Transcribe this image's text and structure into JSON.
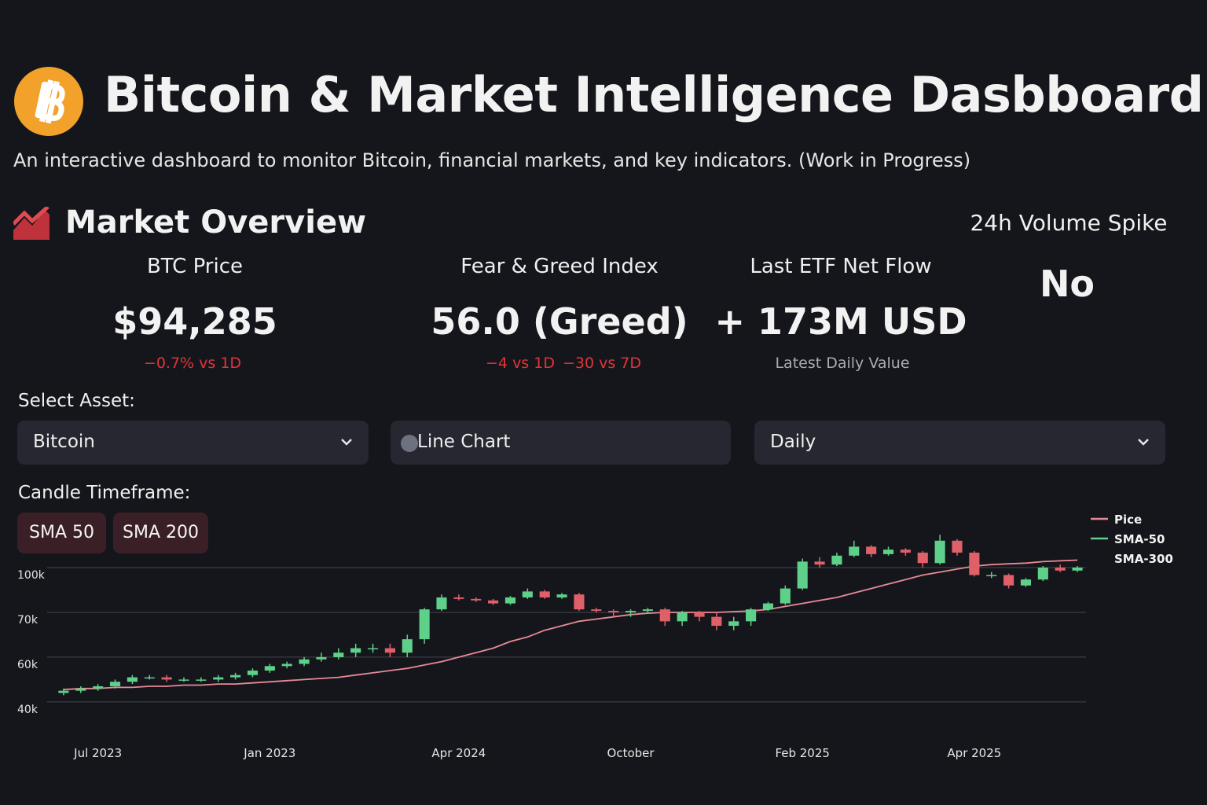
{
  "header": {
    "title": "Bitcoin & Market Intelligence Dasbboard",
    "subtitle": "An interactive dashboard to monitor Bitcoin, financial markets, and key indicators. (Work in Progress)"
  },
  "overview": {
    "title": "Market Overview",
    "metrics": [
      {
        "label": "BTC Price",
        "value": "$94,285",
        "deltas": [
          "−0.7% vs 1D"
        ]
      },
      {
        "label": "Fear & Greed Index",
        "value": "56.0 (Greed)",
        "deltas": [
          "−4 vs 1D",
          "−30 vs 7D"
        ]
      },
      {
        "label": "Last ETF Net Flow",
        "value": "+ 173M USD",
        "note": "Latest Daily Value"
      }
    ],
    "volume_spike": {
      "label": "24h Volume Spike",
      "value": "No"
    }
  },
  "controls": {
    "asset_label": "Select Asset:",
    "asset": "Bitcoin",
    "chart_type": "Line Chart",
    "interval": "Daily",
    "timeframe_label": "Candle Timeframe:",
    "buttons": [
      "SMA 50",
      "SMA 200"
    ]
  },
  "chart_data": {
    "type": "candlestick",
    "categories": [
      null,
      null,
      "Jul 2023",
      null,
      null,
      null,
      null,
      null,
      null,
      null,
      null,
      null,
      "Jan 2023",
      null,
      null,
      null,
      null,
      null,
      null,
      null,
      null,
      null,
      null,
      "Apr 2024",
      null,
      null,
      null,
      null,
      null,
      null,
      null,
      null,
      null,
      "October",
      null,
      null,
      null,
      null,
      null,
      null,
      null,
      null,
      null,
      "Feb 2025",
      null,
      null,
      null,
      null,
      null,
      null,
      null,
      null,
      null,
      "Apr 2025",
      null,
      null,
      null,
      null,
      null,
      null
    ],
    "open": [
      44000,
      45000,
      46000,
      47000,
      49000,
      51000,
      51000,
      50000,
      50000,
      50000,
      51000,
      52000,
      54000,
      56000,
      57000,
      59000,
      60000,
      61000,
      62000,
      62000,
      61000,
      64000,
      72000,
      80000,
      79000,
      78000,
      76000,
      80000,
      84000,
      80000,
      82000,
      72000,
      71000,
      70000,
      71000,
      72000,
      68000,
      70000,
      69000,
      67000,
      68000,
      72000,
      76000,
      86000,
      104000,
      102000,
      108000,
      114000,
      109000,
      112000,
      110000,
      103000,
      118000,
      110000,
      95000,
      95000,
      88000,
      92000,
      100000,
      98000
    ],
    "high": [
      46000,
      47000,
      48000,
      50000,
      52000,
      52000,
      52000,
      51000,
      51000,
      52000,
      53000,
      55000,
      57000,
      58000,
      60000,
      61000,
      62000,
      63000,
      63000,
      63000,
      65000,
      73000,
      82000,
      82000,
      80000,
      79000,
      81000,
      86000,
      85000,
      83000,
      83000,
      73000,
      72000,
      72000,
      73000,
      73000,
      71000,
      71000,
      70000,
      69000,
      73000,
      77000,
      88000,
      106000,
      107000,
      110000,
      118000,
      115000,
      114000,
      113000,
      111000,
      122000,
      119000,
      111000,
      97000,
      96000,
      93000,
      101000,
      102000,
      101000
    ],
    "low": [
      43000,
      44000,
      45000,
      46000,
      48000,
      50000,
      49000,
      49000,
      49000,
      49000,
      50000,
      51000,
      53000,
      55000,
      56000,
      58000,
      59000,
      60000,
      61000,
      60000,
      60000,
      63000,
      71000,
      78000,
      77000,
      75000,
      75000,
      79000,
      79000,
      79000,
      71000,
      70000,
      69000,
      69000,
      70000,
      67000,
      67000,
      68000,
      66000,
      66000,
      67000,
      71000,
      75000,
      85000,
      100000,
      101000,
      107000,
      107000,
      108000,
      108000,
      100000,
      102000,
      108000,
      94000,
      93000,
      86000,
      87000,
      91000,
      97000,
      97000
    ],
    "close": [
      45000,
      46000,
      47000,
      49000,
      51000,
      51000,
      50000,
      50000,
      50000,
      51000,
      52000,
      54000,
      56000,
      57000,
      59000,
      60000,
      61000,
      62000,
      62000,
      61000,
      64000,
      72000,
      80000,
      79000,
      78000,
      76000,
      80000,
      84000,
      80000,
      82000,
      72000,
      71000,
      70000,
      71000,
      72000,
      68000,
      70000,
      69000,
      67000,
      68000,
      72000,
      76000,
      86000,
      104000,
      102000,
      108000,
      114000,
      109000,
      112000,
      110000,
      103000,
      118000,
      110000,
      95000,
      95000,
      88000,
      92000,
      100000,
      98000,
      100000
    ],
    "up_color": "#5fd08a",
    "down_color": "#e0606a",
    "line": {
      "color": "#e88a96",
      "values": [
        45500,
        46000,
        46000,
        46500,
        46500,
        47000,
        47000,
        47500,
        47500,
        48000,
        48000,
        48500,
        49000,
        49500,
        50000,
        50500,
        51000,
        52000,
        53000,
        54000,
        55000,
        56500,
        58000,
        60000,
        61000,
        62000,
        63500,
        64500,
        66000,
        67000,
        68000,
        68500,
        69000,
        69500,
        69800,
        70000,
        70000,
        70000,
        70000,
        70500,
        71000,
        72000,
        74000,
        76000,
        78000,
        80000,
        83000,
        86000,
        89000,
        92000,
        95000,
        97000,
        99000,
        101000,
        102000,
        102500,
        103000,
        104000,
        104500,
        105000
      ]
    },
    "legend": [
      {
        "name": "Pice",
        "color": "#e88a96"
      },
      {
        "name": "SMA-50",
        "color": "#5fd08a"
      },
      {
        "name": "SMA-300"
      }
    ],
    "ylim": [
      34000,
      130000
    ],
    "yticks": [
      {
        "value": 40000,
        "label": "40k"
      },
      {
        "value": 60000,
        "label": "60k"
      },
      {
        "value": 70000,
        "label": "70k"
      },
      {
        "value": 100000,
        "label": "100k"
      }
    ],
    "grid": true
  }
}
